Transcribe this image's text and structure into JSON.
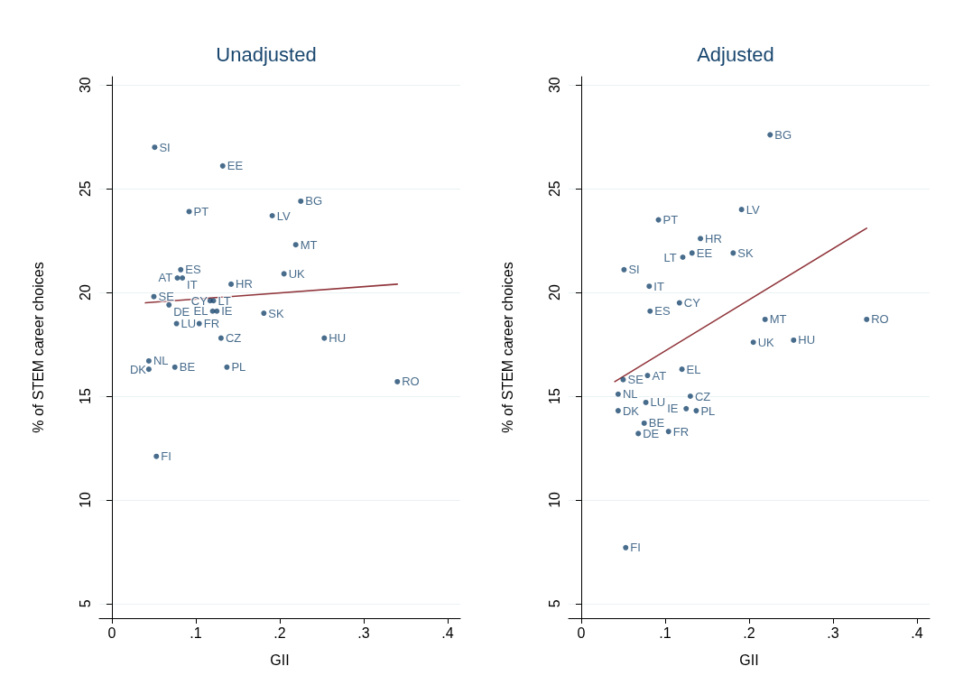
{
  "chart_data": [
    {
      "type": "scatter",
      "title": "Unadjusted",
      "xlabel": "GII",
      "ylabel": "% of STEM career choices",
      "xlim": [
        -0.015,
        0.415
      ],
      "ylim": [
        4.3,
        30.4
      ],
      "xticks": [
        {
          "value": 0,
          "label": "0"
        },
        {
          "value": 0.1,
          "label": ".1"
        },
        {
          "value": 0.2,
          "label": ".2"
        },
        {
          "value": 0.3,
          "label": ".3"
        },
        {
          "value": 0.4,
          "label": ".4"
        }
      ],
      "yticks": [
        5,
        10,
        15,
        20,
        25,
        30
      ],
      "grid": "y",
      "marker": "circle",
      "series": [
        {
          "name": "SI",
          "color": "#1a476f",
          "x": [
            0.051
          ],
          "values": [
            27.0
          ]
        },
        {
          "name": "EE",
          "color": "#1a476f",
          "x": [
            0.132
          ],
          "values": [
            26.1
          ]
        },
        {
          "name": "PT",
          "color": "#1a476f",
          "x": [
            0.092
          ],
          "values": [
            23.9
          ]
        },
        {
          "name": "LV",
          "color": "#1a476f",
          "x": [
            0.191
          ],
          "values": [
            23.7
          ]
        },
        {
          "name": "BG",
          "color": "#1a476f",
          "x": [
            0.225
          ],
          "values": [
            24.4
          ]
        },
        {
          "name": "MT",
          "color": "#1a476f",
          "x": [
            0.219
          ],
          "values": [
            22.3
          ]
        },
        {
          "name": "UK",
          "color": "#1a476f",
          "x": [
            0.205
          ],
          "values": [
            20.9
          ]
        },
        {
          "name": "ES",
          "color": "#1a476f",
          "x": [
            0.082
          ],
          "values": [
            21.1
          ]
        },
        {
          "name": "AT",
          "color": "#1a476f",
          "x": [
            0.078
          ],
          "values": [
            20.7
          ]
        },
        {
          "name": "IT",
          "color": "#1a476f",
          "x": [
            0.084
          ],
          "values": [
            20.7
          ]
        },
        {
          "name": "HR",
          "color": "#1a476f",
          "x": [
            0.142
          ],
          "values": [
            20.4
          ]
        },
        {
          "name": "SE",
          "color": "#1a476f",
          "x": [
            0.05
          ],
          "values": [
            19.8
          ]
        },
        {
          "name": "DE",
          "color": "#1a476f",
          "x": [
            0.068
          ],
          "values": [
            19.4
          ]
        },
        {
          "name": "CY",
          "color": "#1a476f",
          "x": [
            0.117
          ],
          "values": [
            19.6
          ]
        },
        {
          "name": "LT",
          "color": "#1a476f",
          "x": [
            0.121
          ],
          "values": [
            19.6
          ]
        },
        {
          "name": "EL",
          "color": "#1a476f",
          "x": [
            0.12
          ],
          "values": [
            19.1
          ]
        },
        {
          "name": "IE",
          "color": "#1a476f",
          "x": [
            0.125
          ],
          "values": [
            19.1
          ]
        },
        {
          "name": "SK",
          "color": "#1a476f",
          "x": [
            0.181
          ],
          "values": [
            19.0
          ]
        },
        {
          "name": "LU",
          "color": "#1a476f",
          "x": [
            0.077
          ],
          "values": [
            18.5
          ]
        },
        {
          "name": "FR",
          "color": "#1a476f",
          "x": [
            0.104
          ],
          "values": [
            18.5
          ]
        },
        {
          "name": "CZ",
          "color": "#1a476f",
          "x": [
            0.13
          ],
          "values": [
            17.8
          ]
        },
        {
          "name": "HU",
          "color": "#1a476f",
          "x": [
            0.253
          ],
          "values": [
            17.8
          ]
        },
        {
          "name": "NL",
          "color": "#1a476f",
          "x": [
            0.044
          ],
          "values": [
            16.7
          ]
        },
        {
          "name": "DK",
          "color": "#1a476f",
          "x": [
            0.044
          ],
          "values": [
            16.3
          ]
        },
        {
          "name": "BE",
          "color": "#1a476f",
          "x": [
            0.075
          ],
          "values": [
            16.4
          ]
        },
        {
          "name": "PL",
          "color": "#1a476f",
          "x": [
            0.137
          ],
          "values": [
            16.4
          ]
        },
        {
          "name": "RO",
          "color": "#1a476f",
          "x": [
            0.34
          ],
          "values": [
            15.7
          ]
        },
        {
          "name": "FI",
          "color": "#1a476f",
          "x": [
            0.053
          ],
          "values": [
            12.1
          ]
        },
        {
          "type": "line",
          "color": "#90353b",
          "marker": "none",
          "x": [
            0.04,
            0.34
          ],
          "values": [
            19.5,
            20.4
          ]
        }
      ]
    },
    {
      "type": "scatter",
      "title": "Adjusted",
      "xlabel": "GII",
      "ylabel": "% of STEM career choices",
      "xlim": [
        -0.015,
        0.415
      ],
      "ylim": [
        4.3,
        30.4
      ],
      "xticks": [
        {
          "value": 0,
          "label": "0"
        },
        {
          "value": 0.1,
          "label": ".1"
        },
        {
          "value": 0.2,
          "label": ".2"
        },
        {
          "value": 0.3,
          "label": ".3"
        },
        {
          "value": 0.4,
          "label": ".4"
        }
      ],
      "yticks": [
        5,
        10,
        15,
        20,
        25,
        30
      ],
      "grid": "y",
      "marker": "circle",
      "series": [
        {
          "name": "BG",
          "color": "#1a476f",
          "x": [
            0.225
          ],
          "values": [
            27.6
          ]
        },
        {
          "name": "LV",
          "color": "#1a476f",
          "x": [
            0.191
          ],
          "values": [
            24.0
          ]
        },
        {
          "name": "PT",
          "color": "#1a476f",
          "x": [
            0.092
          ],
          "values": [
            23.5
          ]
        },
        {
          "name": "HR",
          "color": "#1a476f",
          "x": [
            0.142
          ],
          "values": [
            22.6
          ]
        },
        {
          "name": "EE",
          "color": "#1a476f",
          "x": [
            0.132
          ],
          "values": [
            21.9
          ]
        },
        {
          "name": "LT",
          "color": "#1a476f",
          "x": [
            0.121
          ],
          "values": [
            21.7
          ]
        },
        {
          "name": "SK",
          "color": "#1a476f",
          "x": [
            0.181
          ],
          "values": [
            21.9
          ]
        },
        {
          "name": "SI",
          "color": "#1a476f",
          "x": [
            0.051
          ],
          "values": [
            21.1
          ]
        },
        {
          "name": "IT",
          "color": "#1a476f",
          "x": [
            0.081
          ],
          "values": [
            20.3
          ]
        },
        {
          "name": "CY",
          "color": "#1a476f",
          "x": [
            0.117
          ],
          "values": [
            19.5
          ]
        },
        {
          "name": "ES",
          "color": "#1a476f",
          "x": [
            0.082
          ],
          "values": [
            19.1
          ]
        },
        {
          "name": "MT",
          "color": "#1a476f",
          "x": [
            0.219
          ],
          "values": [
            18.7
          ]
        },
        {
          "name": "RO",
          "color": "#1a476f",
          "x": [
            0.34
          ],
          "values": [
            18.7
          ]
        },
        {
          "name": "UK",
          "color": "#1a476f",
          "x": [
            0.205
          ],
          "values": [
            17.6
          ]
        },
        {
          "name": "HU",
          "color": "#1a476f",
          "x": [
            0.253
          ],
          "values": [
            17.7
          ]
        },
        {
          "name": "EL",
          "color": "#1a476f",
          "x": [
            0.12
          ],
          "values": [
            16.3
          ]
        },
        {
          "name": "AT",
          "color": "#1a476f",
          "x": [
            0.079
          ],
          "values": [
            16.0
          ]
        },
        {
          "name": "SE",
          "color": "#1a476f",
          "x": [
            0.05
          ],
          "values": [
            15.8
          ]
        },
        {
          "name": "NL",
          "color": "#1a476f",
          "x": [
            0.044
          ],
          "values": [
            15.1
          ]
        },
        {
          "name": "LU",
          "color": "#1a476f",
          "x": [
            0.077
          ],
          "values": [
            14.7
          ]
        },
        {
          "name": "CZ",
          "color": "#1a476f",
          "x": [
            0.13
          ],
          "values": [
            15.0
          ]
        },
        {
          "name": "IE",
          "color": "#1a476f",
          "x": [
            0.125
          ],
          "values": [
            14.4
          ]
        },
        {
          "name": "PL",
          "color": "#1a476f",
          "x": [
            0.137
          ],
          "values": [
            14.3
          ]
        },
        {
          "name": "DK",
          "color": "#1a476f",
          "x": [
            0.044
          ],
          "values": [
            14.3
          ]
        },
        {
          "name": "BE",
          "color": "#1a476f",
          "x": [
            0.075
          ],
          "values": [
            13.7
          ]
        },
        {
          "name": "DE",
          "color": "#1a476f",
          "x": [
            0.068
          ],
          "values": [
            13.2
          ]
        },
        {
          "name": "FR",
          "color": "#1a476f",
          "x": [
            0.104
          ],
          "values": [
            13.3
          ]
        },
        {
          "name": "FI",
          "color": "#1a476f",
          "x": [
            0.053
          ],
          "values": [
            7.7
          ]
        },
        {
          "type": "line",
          "color": "#90353b",
          "marker": "none",
          "x": [
            0.04,
            0.34
          ],
          "values": [
            15.7,
            23.1
          ]
        }
      ]
    }
  ]
}
